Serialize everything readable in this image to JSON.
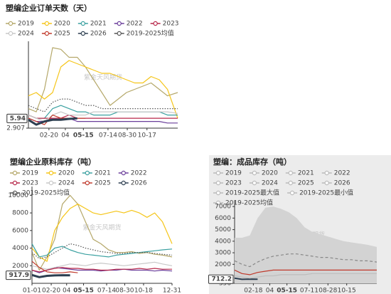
{
  "chart_data": [
    {
      "type": "line",
      "title": "塑编企业订单天数（天）",
      "watermark": "紫金天风期货",
      "x": [
        1,
        20,
        40,
        60,
        80,
        100,
        120,
        140,
        160,
        180,
        200,
        220,
        240,
        260,
        280,
        300,
        320,
        340,
        365
      ],
      "xlim": [
        1,
        365
      ],
      "xticks": [
        {
          "value": 51,
          "label": "02-20"
        },
        {
          "value": 91,
          "label": "04"
        },
        {
          "value": 195,
          "label": "07-14"
        },
        {
          "value": 242,
          "label": "08-30"
        },
        {
          "value": 290,
          "label": "10-17"
        }
      ],
      "current_x": {
        "value": 135,
        "label": "05-15"
      },
      "ylim": [
        2.907,
        30
      ],
      "yticks": [
        2.907
      ],
      "current_value": 5.94,
      "grid": false,
      "series": [
        {
          "name": "2019",
          "color": "#b5a86a",
          "values": [
            9,
            8,
            15,
            28,
            27.5,
            25,
            25,
            22,
            18,
            14,
            10,
            12,
            14,
            15,
            16,
            17,
            15,
            13,
            14
          ]
        },
        {
          "name": "2020",
          "color": "#f5c518",
          "values": [
            13,
            14,
            12,
            14,
            22,
            24,
            23,
            22,
            21,
            20,
            20,
            19,
            18,
            17,
            17,
            19,
            18,
            15,
            6
          ]
        },
        {
          "name": "2021",
          "color": "#3aa0a0",
          "values": [
            7,
            6,
            6,
            9,
            10,
            9,
            8,
            8,
            7,
            7,
            7,
            8,
            8,
            8,
            8,
            8,
            8,
            7,
            7
          ]
        },
        {
          "name": "2022",
          "color": "#6a3d9a",
          "values": [
            6,
            5,
            5,
            6,
            6,
            6,
            5,
            5,
            5,
            5,
            5,
            5,
            5,
            5,
            5,
            5,
            5,
            4.5,
            4.5
          ]
        },
        {
          "name": "2023",
          "color": "#b8284a",
          "values": [
            7,
            6,
            6,
            6,
            6,
            7,
            6,
            6,
            6,
            6,
            6,
            6,
            6,
            6,
            6,
            6,
            6,
            6,
            6
          ]
        },
        {
          "name": "2024",
          "color": "#c8c8c8",
          "values": [
            7,
            6,
            5,
            7,
            8,
            7,
            7,
            7,
            8,
            8,
            8,
            8,
            8,
            8,
            8,
            8,
            8,
            8,
            7.5
          ]
        },
        {
          "name": "2025",
          "color": "#c0392b",
          "values": [
            6,
            5,
            4,
            7,
            6,
            6,
            6,
            6,
            null,
            null,
            null,
            null,
            null,
            null,
            null,
            null,
            null,
            null,
            null
          ]
        },
        {
          "name": "2026",
          "color": "#2c3e50",
          "width": 3,
          "values": [
            5.5,
            4,
            5,
            5.5,
            5.5,
            5.8,
            5.94,
            null,
            null,
            null,
            null,
            null,
            null,
            null,
            null,
            null,
            null,
            null,
            null
          ]
        },
        {
          "name": "2019-2025均值",
          "color": "#555555",
          "dash": "dot",
          "values": [
            10,
            9,
            8,
            11,
            12,
            12,
            11,
            10,
            10,
            9,
            9,
            9,
            9,
            9,
            9,
            9,
            9,
            9,
            9
          ]
        }
      ]
    },
    {
      "type": "line",
      "title": "塑编企业原料库存（吨）",
      "watermark": "紫金天风期货",
      "x": [
        1,
        20,
        40,
        60,
        80,
        100,
        120,
        140,
        160,
        180,
        200,
        220,
        240,
        260,
        280,
        300,
        320,
        340,
        365
      ],
      "xlim": [
        1,
        365
      ],
      "xticks": [
        {
          "value": 1,
          "label": "01-01"
        },
        {
          "value": 51,
          "label": "02-20"
        },
        {
          "value": 91,
          "label": "04"
        },
        {
          "value": 195,
          "label": "07-14"
        },
        {
          "value": 242,
          "label": "08-30"
        },
        {
          "value": 291,
          "label": "10-18"
        },
        {
          "value": 365,
          "label": "12-31"
        }
      ],
      "current_x": {
        "value": 135,
        "label": "05-15"
      },
      "ylim": [
        0,
        11000
      ],
      "yticks": [
        2000,
        4000,
        6000,
        8000,
        10000
      ],
      "current_value": 917.9,
      "grid": false,
      "series": [
        {
          "name": "2019",
          "color": "#b5a86a",
          "values": [
            3500,
            1500,
            3000,
            5000,
            9000,
            10000,
            9000,
            7000,
            5000,
            4500,
            3800,
            3500,
            3500,
            3600,
            3400,
            3500,
            3300,
            3200,
            3000
          ]
        },
        {
          "name": "2020",
          "color": "#f5c518",
          "values": [
            4000,
            3000,
            2500,
            6000,
            7500,
            8500,
            9000,
            8500,
            8000,
            7800,
            8000,
            8200,
            8000,
            8300,
            8000,
            7500,
            8000,
            7000,
            4500
          ]
        },
        {
          "name": "2021",
          "color": "#3aa0a0",
          "values": [
            4500,
            3000,
            3200,
            4000,
            4200,
            3800,
            3500,
            3300,
            3200,
            3100,
            3000,
            3200,
            3300,
            3400,
            3500,
            3600,
            3700,
            3800,
            3900
          ]
        },
        {
          "name": "2022",
          "color": "#6a3d9a",
          "values": [
            1500,
            1200,
            1500,
            1800,
            1700,
            1600,
            1500,
            1500,
            1500,
            1400,
            1500,
            1500,
            1600,
            1500,
            1500,
            1500,
            1400,
            1500,
            1400
          ]
        },
        {
          "name": "2023",
          "color": "#b8284a",
          "values": [
            1500,
            1300,
            1500,
            1700,
            1800,
            1700,
            1700,
            1600,
            1600,
            1500,
            1500,
            1600,
            1600,
            1600,
            1700,
            1600,
            1700,
            1600,
            1600
          ]
        },
        {
          "name": "2024",
          "color": "#c8c8c8",
          "values": [
            2000,
            1800,
            1600,
            1800,
            2000,
            2200,
            2100,
            2000,
            2200,
            2300,
            2200,
            2100,
            2000,
            2100,
            2200,
            2300,
            2400,
            2200,
            2000
          ]
        },
        {
          "name": "2025",
          "color": "#c0392b",
          "values": [
            2500,
            1800,
            1300,
            1200,
            1200,
            1300,
            1200,
            null,
            null,
            null,
            null,
            null,
            null,
            null,
            null,
            null,
            null,
            null,
            null
          ]
        },
        {
          "name": "2026",
          "color": "#2c3e50",
          "width": 3,
          "values": [
            950,
            700,
            850,
            900,
            920,
            917.9,
            null,
            null,
            null,
            null,
            null,
            null,
            null,
            null,
            null,
            null,
            null,
            null,
            null
          ]
        },
        {
          "name": "2019-2025均值",
          "color": "#555555",
          "dash": "dot",
          "values": [
            3500,
            2800,
            3000,
            3500,
            4000,
            4500,
            4300,
            4000,
            3800,
            3600,
            3500,
            3400,
            3400,
            3500,
            3500,
            3500,
            3400,
            3300,
            3200
          ]
        }
      ]
    },
    {
      "type": "line",
      "title": "塑编：成品库存（吨）",
      "watermark": "紫金天风期货",
      "legend_faded": true,
      "background": "#ececec",
      "x": [
        1,
        20,
        40,
        60,
        80,
        100,
        120,
        140,
        160,
        180,
        200,
        220,
        240,
        260,
        280,
        300,
        320,
        340,
        365
      ],
      "xlim": [
        1,
        365
      ],
      "xticks": [
        {
          "value": 49,
          "label": "02-18"
        },
        {
          "value": 91,
          "label": "04"
        },
        {
          "value": 192,
          "label": "07-11"
        },
        {
          "value": 240,
          "label": "08-28"
        },
        {
          "value": 288,
          "label": "10-15"
        }
      ],
      "current_x": {
        "value": 135,
        "label": "05-15"
      },
      "ylim": [
        356,
        7500
      ],
      "yticks": [
        356,
        2000,
        3000,
        4000,
        5000,
        6000,
        7000
      ],
      "current_value": 712.2,
      "grid": false,
      "series": [
        {
          "name": "2019",
          "color": "#b5a86a"
        },
        {
          "name": "2020",
          "color": "#f5c518"
        },
        {
          "name": "2021",
          "color": "#3aa0a0"
        },
        {
          "name": "2022",
          "color": "#6a3d9a"
        },
        {
          "name": "2023",
          "color": "#b8284a"
        },
        {
          "name": "2024",
          "color": "#c8c8c8"
        },
        {
          "name": "2025",
          "color": "#c0392b",
          "values": [
            1500,
            1200,
            1100,
            1300,
            1400,
            1500,
            1500,
            1500,
            1500,
            1500,
            1500,
            1500,
            1500,
            1500,
            1500,
            1500,
            1500,
            1500,
            1500
          ]
        },
        {
          "name": "2026",
          "color": "#2c3e50",
          "width": 2,
          "values": [
            800,
            700,
            720,
            712.2,
            null,
            null,
            null,
            null,
            null,
            null,
            null,
            null,
            null,
            null,
            null,
            null,
            null,
            null,
            null
          ]
        },
        {
          "name": "2019-2025最大值",
          "color": "#d3d3d3",
          "area": true,
          "values": [
            4300,
            4300,
            4500,
            6000,
            6900,
            7000,
            6800,
            6500,
            6000,
            5200,
            4800,
            4600,
            4400,
            4200,
            4000,
            3900,
            3800,
            3700,
            3500
          ]
        },
        {
          "name": "2019-2025最小值",
          "color": "#bdbdbd",
          "values": [
            1000,
            900,
            800,
            900,
            1000,
            1000,
            1100,
            1100,
            1100,
            1100,
            1200,
            1200,
            1200,
            1200,
            1200,
            1200,
            1200,
            1200,
            1200
          ]
        },
        {
          "name": "2019-2025均值",
          "color": "#888888",
          "dash": "dash",
          "values": [
            2300,
            2000,
            1800,
            2200,
            2500,
            2700,
            2800,
            2900,
            2900,
            2800,
            2700,
            2600,
            2600,
            2500,
            2400,
            2400,
            2300,
            2300,
            2200
          ]
        }
      ]
    }
  ]
}
